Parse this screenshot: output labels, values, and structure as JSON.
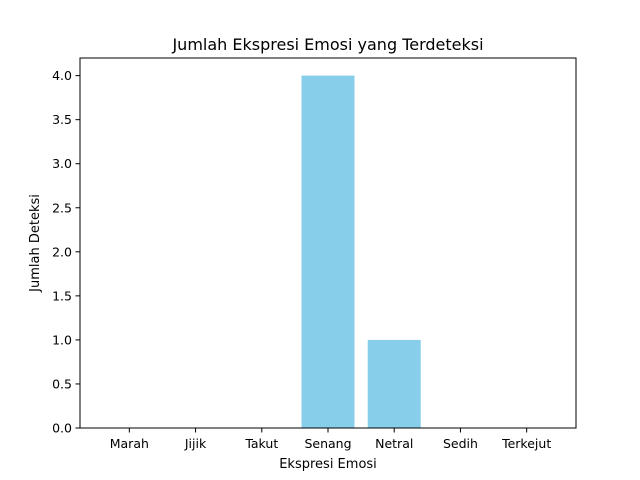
{
  "chart_data": {
    "type": "bar",
    "title": "Jumlah Ekspresi Emosi yang Terdeteksi",
    "xlabel": "Ekspresi Emosi",
    "ylabel": "Jumlah Deteksi",
    "categories": [
      "Marah",
      "Jijik",
      "Takut",
      "Senang",
      "Netral",
      "Sedih",
      "Terkejut"
    ],
    "values": [
      0,
      0,
      0,
      4,
      1,
      0,
      0
    ],
    "ylim": [
      0,
      4.2
    ],
    "yticks": [
      "0.0",
      "0.5",
      "1.0",
      "1.5",
      "2.0",
      "2.5",
      "3.0",
      "3.5",
      "4.0"
    ],
    "bar_color": "#87CEEB",
    "grid": false,
    "legend": "none"
  }
}
